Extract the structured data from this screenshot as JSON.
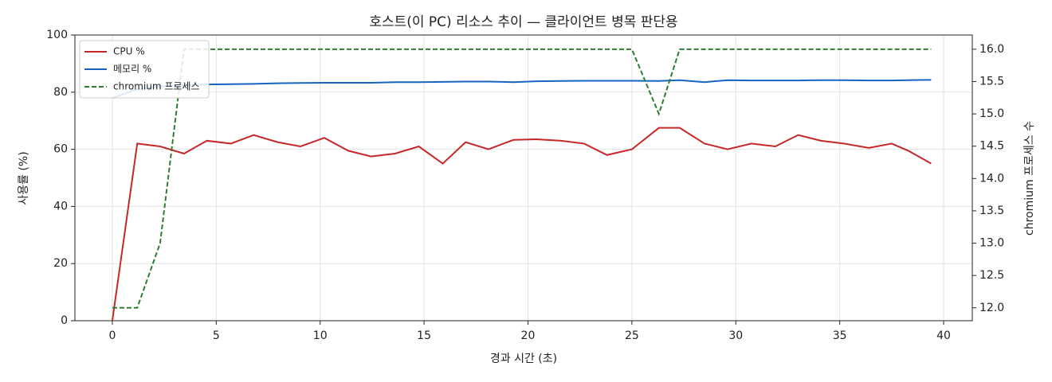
{
  "chart_data": {
    "type": "line",
    "title": "호스트(이 PC) 리소스 추이 — 클라이언트 병목 판단용",
    "xlabel": "경과 시간 (초)",
    "ylabel": "사용률 (%)",
    "y2label": "chromium 프로세스 수",
    "x": [
      0,
      1.2,
      2.3,
      3.45,
      4.55,
      5.7,
      6.8,
      7.95,
      9.05,
      10.2,
      11.35,
      12.45,
      13.6,
      14.75,
      15.9,
      17.0,
      18.1,
      19.3,
      20.4,
      21.6,
      22.7,
      23.8,
      25.0,
      26.3,
      27.3,
      28.5,
      29.6,
      30.75,
      31.9,
      33.0,
      34.1,
      35.2,
      36.4,
      37.5,
      38.3,
      39.4
    ],
    "series": [
      {
        "name": "CPU %",
        "color": "#c62828",
        "dash": false,
        "values": [
          0,
          62,
          61,
          58.5,
          63,
          62,
          65,
          62.5,
          61,
          64,
          59.5,
          57.5,
          58.5,
          61,
          55,
          62.5,
          60,
          63.3,
          63.5,
          63,
          62,
          58,
          60,
          67.5,
          67.5,
          62,
          60,
          62,
          61,
          65,
          63,
          62,
          60.5,
          62,
          59.5,
          55
        ]
      },
      {
        "name": "메모리 %",
        "color": "#1565c0",
        "dash": false,
        "values": [
          78,
          81,
          82,
          82.5,
          82.7,
          82.8,
          82.9,
          83.1,
          83.2,
          83.3,
          83.3,
          83.3,
          83.5,
          83.5,
          83.6,
          83.7,
          83.7,
          83.5,
          83.8,
          83.9,
          84,
          84,
          84,
          83.9,
          84.2,
          83.5,
          84.2,
          84.1,
          84.1,
          84.1,
          84.2,
          84.2,
          84.1,
          84.1,
          84.2,
          84.3
        ]
      },
      {
        "name": "chromium 프로세스",
        "color": "#2e7d32",
        "dash": true,
        "axis": "y2",
        "values": [
          12,
          12,
          13,
          16,
          16,
          16,
          16,
          16,
          16,
          16,
          16,
          16,
          16,
          16,
          16,
          16,
          16,
          16,
          16,
          16,
          16,
          16,
          16,
          15,
          16,
          16,
          16,
          16,
          16,
          16,
          16,
          16,
          16,
          16,
          16,
          16
        ]
      }
    ],
    "xlim": [
      -1.8,
      41.38
    ],
    "xticks": [
      0,
      5,
      10,
      15,
      20,
      25,
      30,
      35,
      40
    ],
    "ylim": [
      0,
      100
    ],
    "yticks": [
      0,
      20,
      40,
      60,
      80,
      100
    ],
    "y2lim": [
      11.8,
      16.22
    ],
    "y2ticks": [
      {
        "value": 12,
        "label": "12.0"
      },
      {
        "value": 12.5,
        "label": "12.5"
      },
      {
        "value": 13,
        "label": "13.0"
      },
      {
        "value": 13.5,
        "label": "13.5"
      },
      {
        "value": 14,
        "label": "14.0"
      },
      {
        "value": 14.5,
        "label": "14.5"
      },
      {
        "value": 15,
        "label": "15.0"
      },
      {
        "value": 15.5,
        "label": "15.5"
      },
      {
        "value": 16,
        "label": "16.0"
      }
    ],
    "grid": true,
    "legend": "upper-left"
  }
}
